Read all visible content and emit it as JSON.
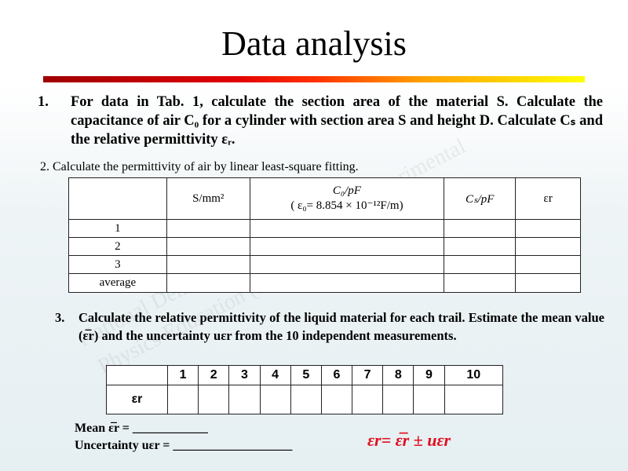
{
  "title": "Data analysis",
  "colors": {
    "accent_bar_start": "#a00000",
    "accent_bar_end": "#ffff00",
    "formula": "#e01020"
  },
  "watermark": [
    "National Demonstration Center for Experimental",
    "Physics Education (Soochow University)"
  ],
  "item1": {
    "number": "1.",
    "text": "For data in Tab. 1, calculate the section area of the material S. Calculate the capacitance of air C₀ for a cylinder with section area S and height D. Calculate Cₛ and the relative permittivity εᵣ."
  },
  "item2": {
    "text": "2. Calculate the permittivity of air by linear least-square fitting."
  },
  "table1": {
    "headers": [
      "",
      "S/mm²",
      "C₀/pF",
      "( ε₀= 8.854 × 10⁻¹²F/m)",
      "Cₛ/pF",
      "εr"
    ],
    "rows": [
      "1",
      "2",
      "3",
      "average"
    ]
  },
  "item3": {
    "number": "3.",
    "text": "Calculate the relative permittivity of the liquid material for each trail. Estimate the mean value (ε̅r) and the uncertainty uεr from the 10 independent measurements."
  },
  "table2": {
    "headers": [
      "1",
      "2",
      "3",
      "4",
      "5",
      "6",
      "7",
      "8",
      "9",
      "10"
    ],
    "row_label": "εr"
  },
  "mean_line": "Mean ε̅r = ____________",
  "uncertainty_line": "Uncertainty uεr = ___________________",
  "formula": "εr= ε̅r ± uεr"
}
